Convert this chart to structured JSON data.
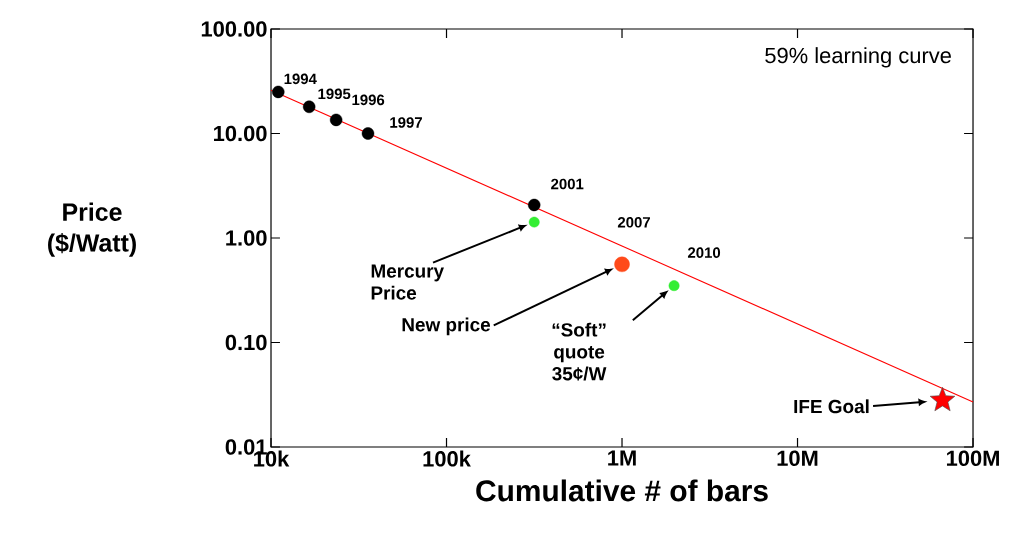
{
  "chart_data": {
    "type": "scatter",
    "xlabel": "Cumulative # of bars",
    "ylabel": "Price ($/Watt)",
    "log": "xy",
    "xlim": [
      10000,
      100000000
    ],
    "ylim": [
      0.01,
      100
    ],
    "xticks": [
      {
        "value": 10000,
        "label": "10k"
      },
      {
        "value": 100000,
        "label": "100k"
      },
      {
        "value": 1000000,
        "label": "1M"
      },
      {
        "value": 10000000,
        "label": "10M"
      },
      {
        "value": 100000000,
        "label": "100M"
      }
    ],
    "yticks": [
      {
        "value": 0.01,
        "label": "0.01"
      },
      {
        "value": 0.1,
        "label": "0.10"
      },
      {
        "value": 1,
        "label": "1.00"
      },
      {
        "value": 10,
        "label": "10.00"
      },
      {
        "value": 100,
        "label": "100.00"
      }
    ],
    "grid": false,
    "series": [
      {
        "type": "line",
        "color": "#ff0000",
        "x": [
          10000,
          100000000
        ],
        "values": [
          26,
          0.027
        ],
        "marker": "none"
      },
      {
        "color": "#000000",
        "x": [
          11000,
          16500,
          23500,
          35700,
          316000
        ],
        "values": [
          25,
          18,
          13.5,
          10,
          2.07
        ],
        "marker": "circle"
      },
      {
        "color": "#33ee33",
        "x": [
          316000,
          1980000
        ],
        "values": [
          1.42,
          0.35
        ],
        "marker": "circle"
      },
      {
        "color": "#ff4a1a",
        "x": [
          1000000
        ],
        "values": [
          0.56
        ],
        "marker": "circle"
      },
      {
        "color": "#ff0000",
        "x": [
          67000000
        ],
        "values": [
          0.028
        ],
        "marker": "star"
      }
    ],
    "annotations": [
      "59% learning curve",
      {
        "text": "1994",
        "x": 11000,
        "y": 25
      },
      {
        "text": "1995",
        "x": 16500,
        "y": 18
      },
      {
        "text": "1996",
        "x": 23500,
        "y": 13.5
      },
      {
        "text": "1997",
        "x": 35700,
        "y": 10
      },
      {
        "text": "2001",
        "x": 316000,
        "y": 2.07
      },
      {
        "text": "2007",
        "x": 1000000,
        "y": 0.56
      },
      {
        "text": "2010",
        "x": 1980000,
        "y": 0.35
      },
      "Mercury Price",
      "New price",
      "“Soft” quote 35¢/W",
      "IFE Goal"
    ]
  }
}
